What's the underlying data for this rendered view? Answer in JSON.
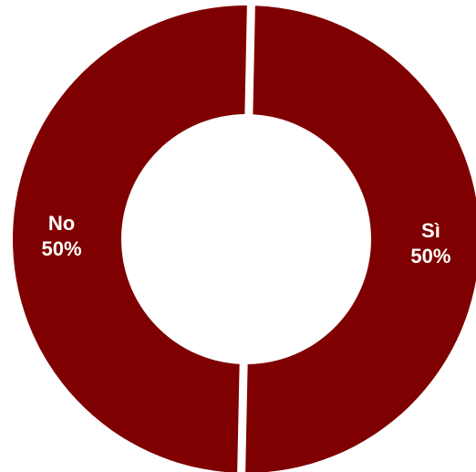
{
  "chart_data": {
    "type": "pie",
    "style": "donut",
    "categories": [
      "Sì",
      "No"
    ],
    "values": [
      50,
      50
    ],
    "labels": [
      {
        "name": "Sì",
        "value_text": "50%"
      },
      {
        "name": "No",
        "value_text": "50%"
      }
    ],
    "colors": [
      "#7f0000",
      "#7f0000"
    ],
    "separator_color": "#ffffff",
    "legend": "none",
    "title": ""
  }
}
